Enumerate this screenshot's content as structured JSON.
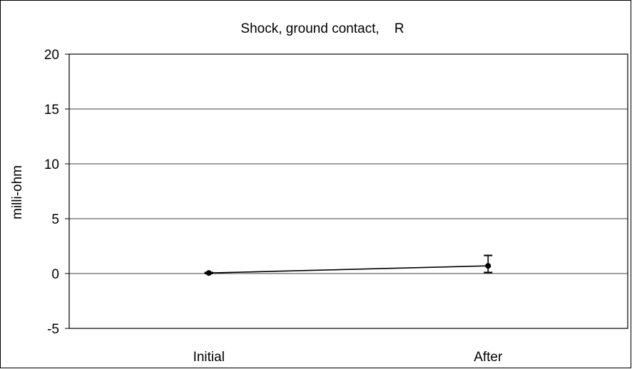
{
  "chart_data": {
    "type": "line",
    "title": "Shock, ground contact,    R",
    "xlabel": "",
    "ylabel": "milli-ohm",
    "categories": [
      "Initial",
      "After"
    ],
    "ylim": [
      -5,
      20
    ],
    "yticks": [
      20,
      15,
      10,
      5,
      0,
      -5
    ],
    "ytick_labels": [
      "20",
      "15",
      "10",
      "5",
      "0",
      "-5"
    ],
    "grid": true,
    "legend": "none",
    "series": [
      {
        "values": [
          0.05,
          0.7
        ],
        "error_low": [
          0.05,
          0.6
        ],
        "error_high": [
          0.05,
          0.95
        ],
        "color": "#000000"
      }
    ]
  }
}
